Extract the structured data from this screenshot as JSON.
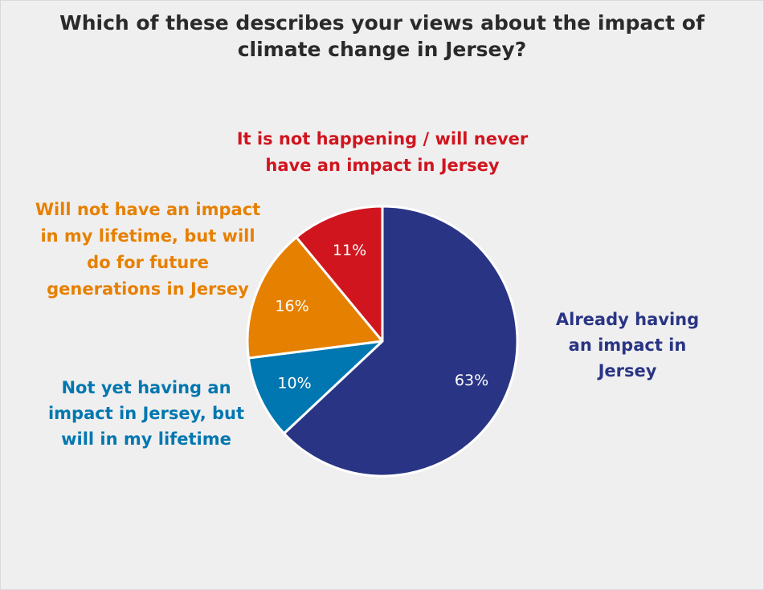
{
  "chart_data": {
    "type": "pie",
    "title": "Which of these describes your views about the impact of\nclimate change in Jersey?",
    "slices": [
      {
        "label": "Already having an impact in Jersey",
        "label_lines": [
          "Already having",
          "an impact in",
          "Jersey"
        ],
        "value": 63,
        "value_label": "63%",
        "color": "#293584"
      },
      {
        "label": "Not yet having an impact in Jersey, but will in my lifetime",
        "label_lines": [
          "Not yet having an",
          "impact in Jersey, but",
          "will in my lifetime"
        ],
        "value": 10,
        "value_label": "10%",
        "color": "#0077b0"
      },
      {
        "label": "Will not have an impact in my lifetime, but will do for future generations in Jersey",
        "label_lines": [
          "Will not have an impact",
          "in my lifetime, but will",
          "do for future",
          "generations in Jersey"
        ],
        "value": 16,
        "value_label": "16%",
        "color": "#e68000"
      },
      {
        "label": "It is not happening / will never have an impact in Jersey",
        "label_lines": [
          "It is not happening / will never",
          "have an impact in Jersey"
        ],
        "value": 11,
        "value_label": "11%",
        "color": "#d0151f"
      }
    ],
    "start": "12 o'clock",
    "direction": "clockwise",
    "legend": "none"
  }
}
